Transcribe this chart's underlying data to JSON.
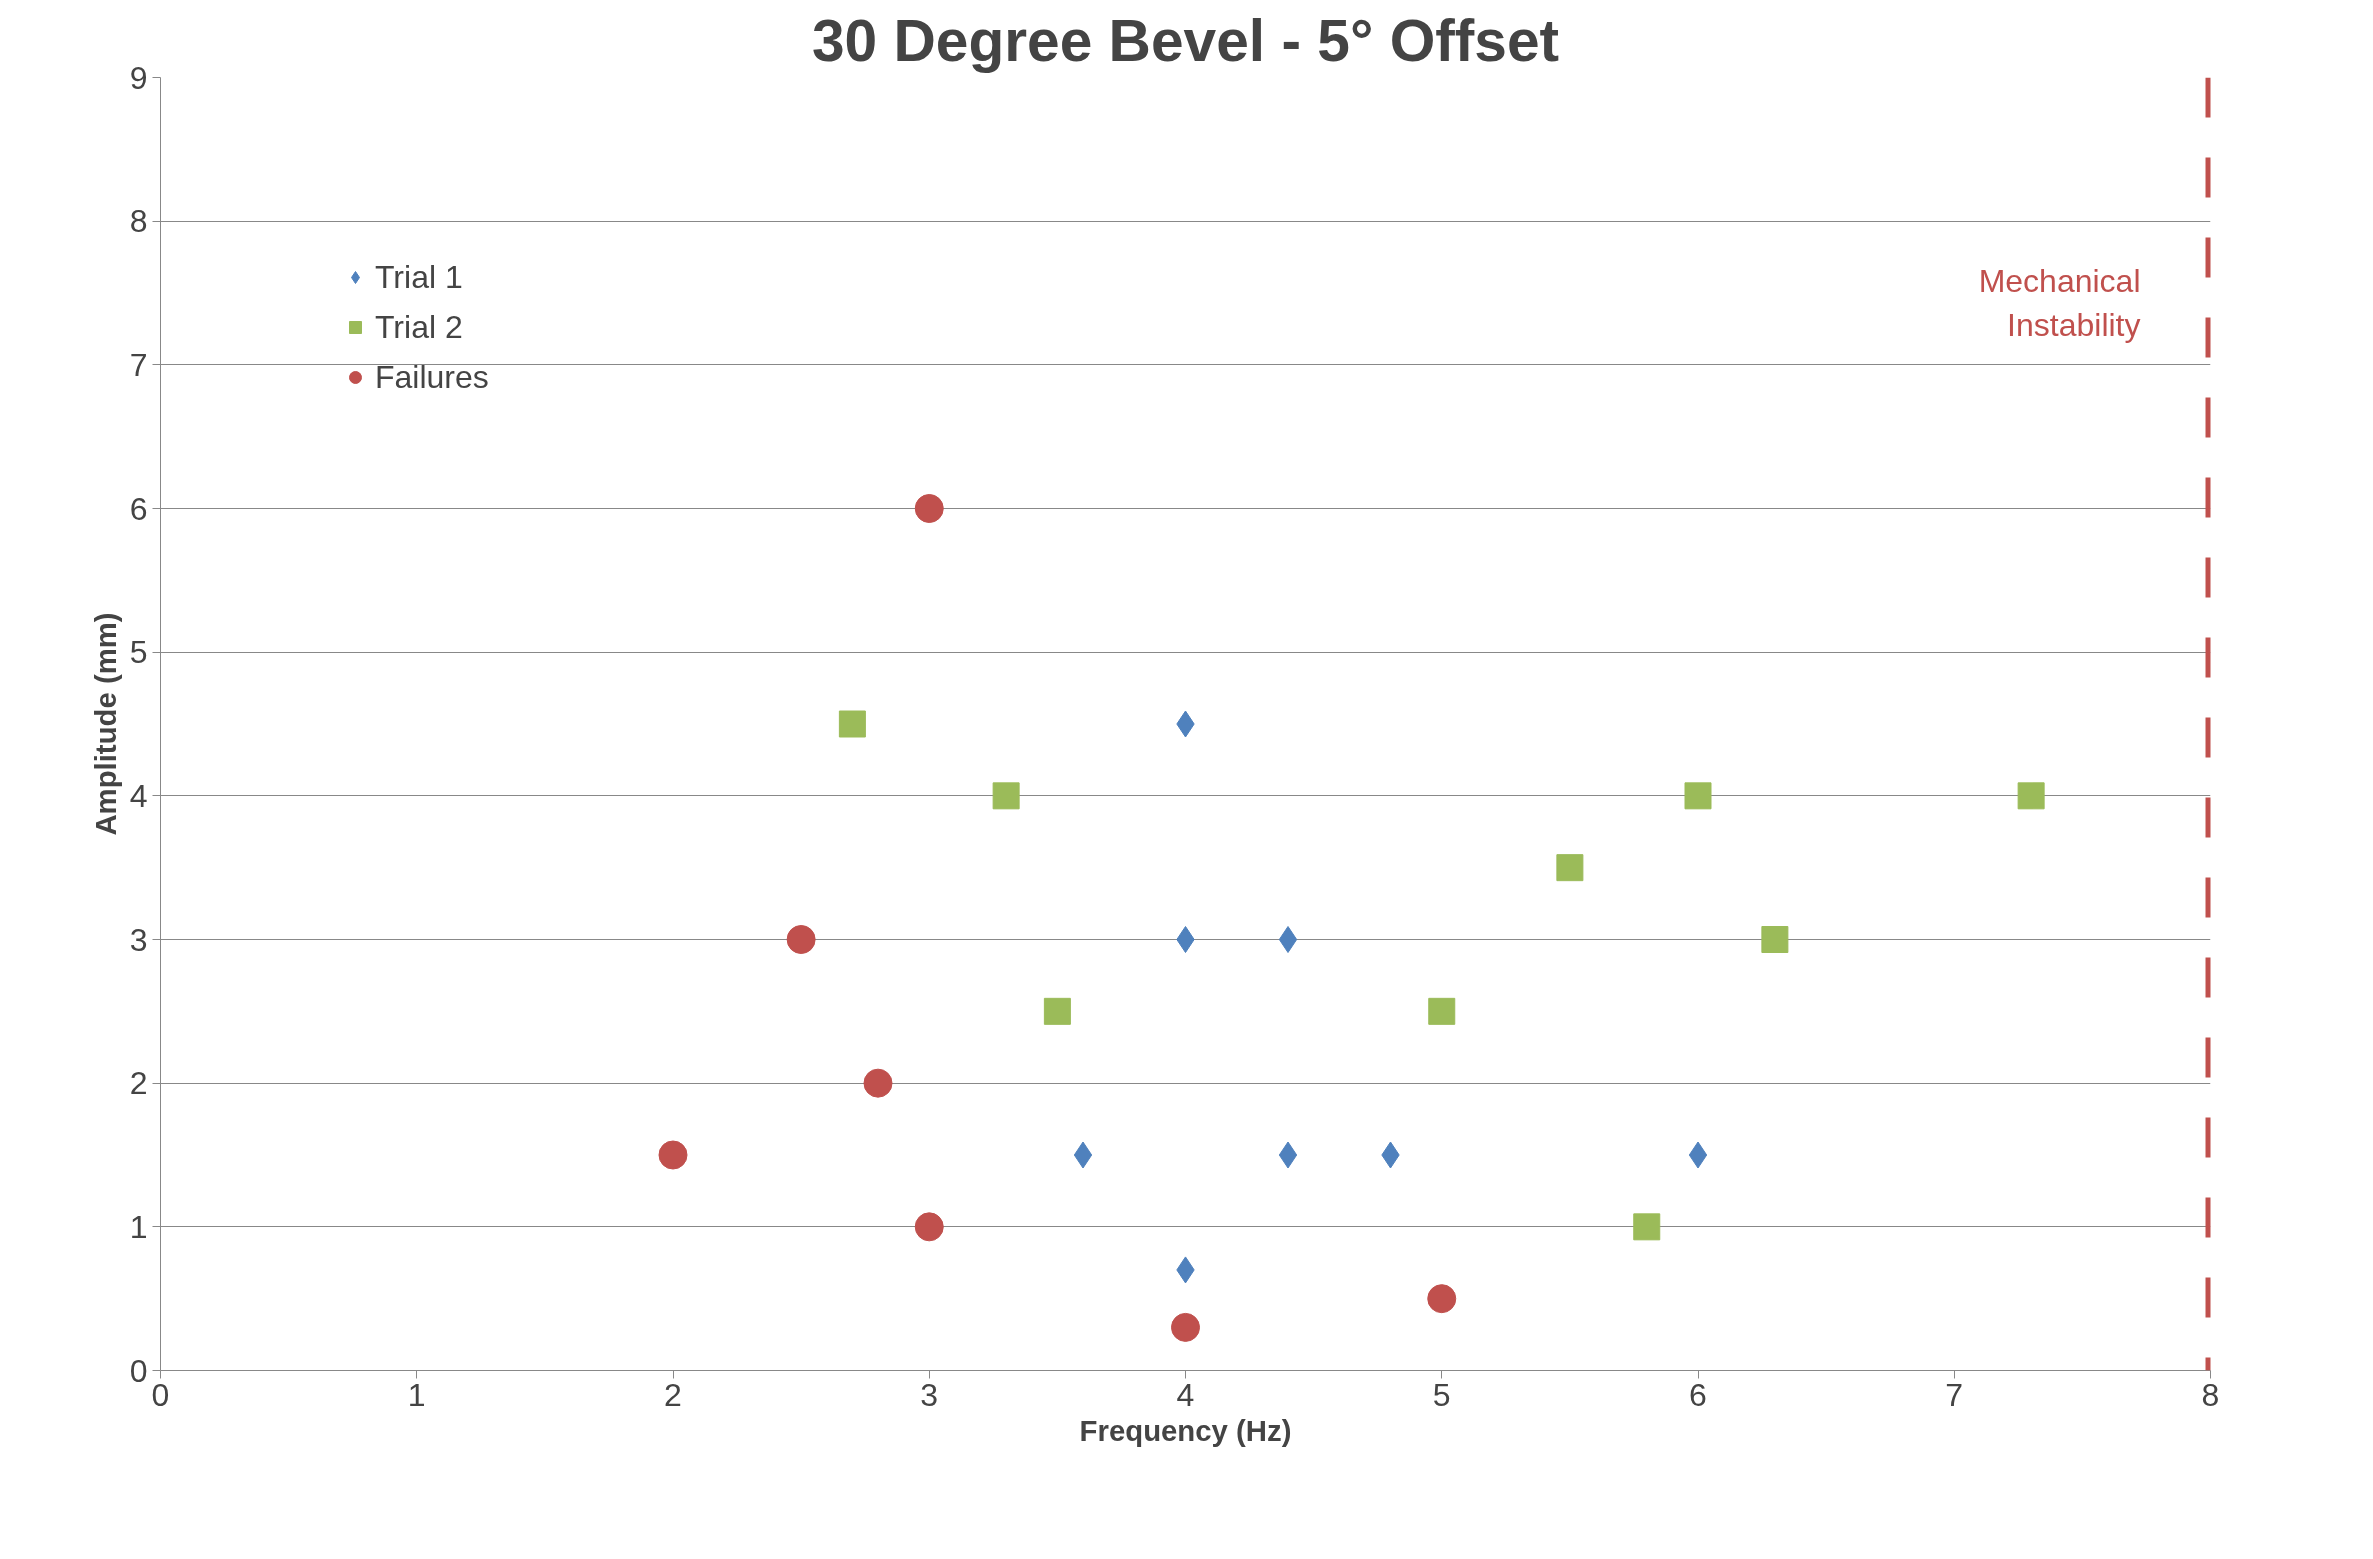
{
  "chart_data": {
    "type": "scatter",
    "title": "30 Degree Bevel - 5° Offset",
    "xlabel": "Frequency (Hz)",
    "ylabel": "Amplitude (mm)",
    "xlim": [
      0,
      8
    ],
    "ylim": [
      0,
      9
    ],
    "xticks": [
      0,
      1,
      2,
      3,
      4,
      5,
      6,
      7,
      8
    ],
    "yticks": [
      0,
      1,
      2,
      3,
      4,
      5,
      6,
      7,
      8,
      9
    ],
    "grid": "y",
    "legend": "top left",
    "series": [
      {
        "name": "Trial 1",
        "color": "#4f81bd",
        "marker": "diamond",
        "x": [
          4,
          4,
          4.4,
          3.6,
          4.4,
          4.8,
          6,
          4
        ],
        "values": [
          4.5,
          3,
          3,
          1.5,
          1.5,
          1.5,
          1.5,
          0.7
        ]
      },
      {
        "name": "Trial 2",
        "color": "#9bbb59",
        "marker": "square",
        "x": [
          2.7,
          3.3,
          6,
          7.3,
          5.5,
          6.3,
          3.5,
          5,
          5.8
        ],
        "values": [
          4.5,
          4,
          4,
          4,
          3.5,
          3,
          2.5,
          2.5,
          1
        ]
      },
      {
        "name": "Failures",
        "color": "#c0504d",
        "marker": "circle",
        "x": [
          3,
          2.5,
          2.8,
          2,
          3,
          5,
          4
        ],
        "values": [
          6,
          3,
          2,
          1.5,
          1,
          0.5,
          0.3
        ]
      }
    ],
    "ref_lines": [
      {
        "axis": "x",
        "value": 8,
        "label": "Mechanical\nInstability",
        "color": "#c0504d",
        "line_style": "dashed"
      }
    ]
  }
}
